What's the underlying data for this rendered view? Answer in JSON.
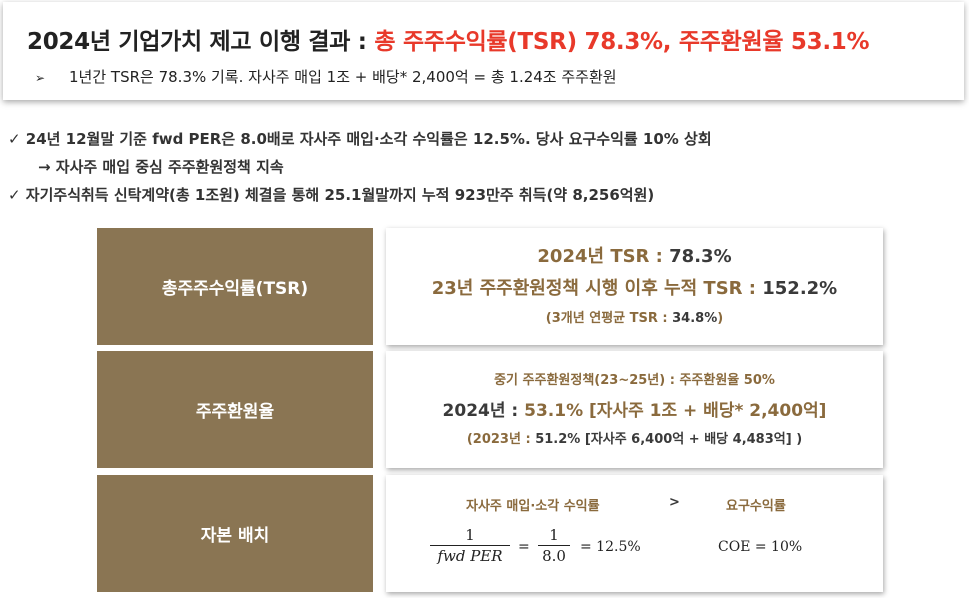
{
  "header": {
    "title_main": "2024년 기업가치 제고 이행 결과 : ",
    "title_accent": "총 주주수익률(TSR) 78.3%, 주주환원율 53.1%",
    "subtitle_arrow": "➢",
    "subtitle": "1년간 TSR은 78.3% 기록. 자사주 매입 1조 + 배당* 2,400억 = 총 1.24조 주주환원"
  },
  "bullets": [
    "✓ 24년 12월말 기준 fwd PER은 8.0배로 자사주 매입·소각 수익률은 12.5%. 당사 요구수익률 10% 상회",
    "→ 자사주 매입 중심 주주환원정책 지속",
    "✓ 자기주식취득 신탁계약(총 1조원) 체결을 통해 25.1월말까지 누적 923만주 취득(약 8,256억원)"
  ],
  "sections": {
    "tsr": {
      "label": "총주주수익률(TSR)",
      "line1_label": "2024년 TSR : ",
      "line1_value": "78.3%",
      "line2_label": "23년 주주환원정책 시행 이후 누적 TSR : ",
      "line2_value": "152.2%",
      "line3_label": "(3개년 연평균 TSR : ",
      "line3_value": "34.8%",
      "line3_end": ")"
    },
    "payout": {
      "label": "주주환원율",
      "line1": "중기 주주환원정책(23~25년) : 주주환원율 50%",
      "line2_label": "2024년 : ",
      "line2_value": "53.1% [자사주 1조 + 배당* 2,400억]",
      "line3_label": "(2023년 : ",
      "line3_value": "51.2% [자사주 6,400억 + 배당 4,483억] )"
    },
    "capital": {
      "label": "자본 배치",
      "left_caption": "자사주 매입·소각 수익률",
      "gt": ">",
      "right_caption": "요구수익률",
      "frac1_num": "1",
      "frac1_den": "fwd PER",
      "eq1": "=",
      "frac2_num": "1",
      "frac2_den": "8.0",
      "eq2": "=  12.5%",
      "coe": "COE  =  10%"
    }
  }
}
